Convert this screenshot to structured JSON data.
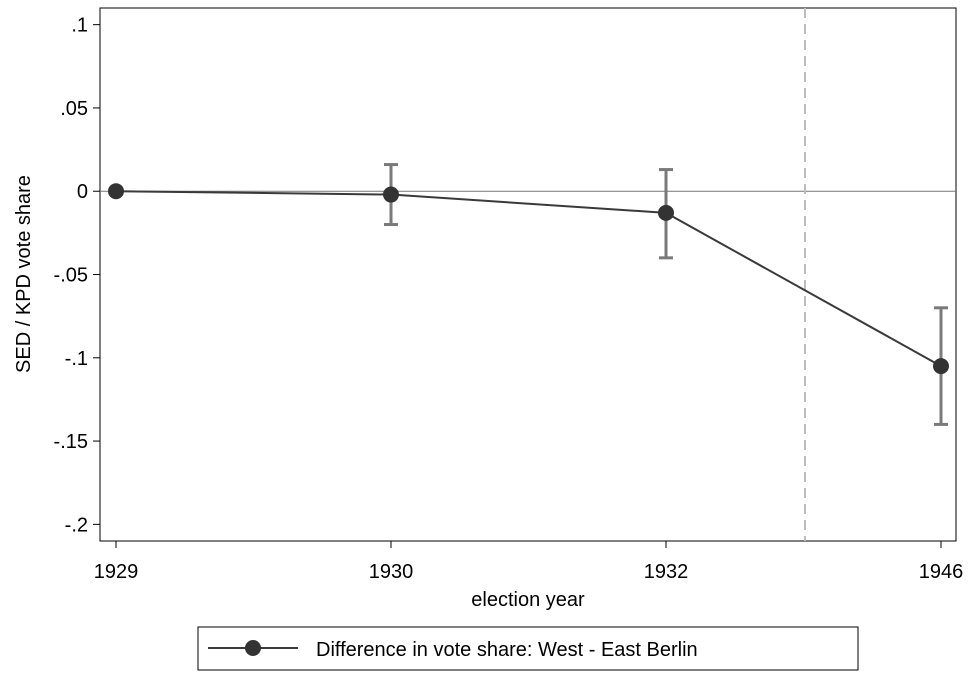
{
  "chart_data": {
    "type": "line",
    "xlabel": "election year",
    "ylabel": "SED / KPD vote share",
    "categories": [
      "1929",
      "1930",
      "1932",
      "1946"
    ],
    "ylim": [
      -0.21,
      0.11
    ],
    "yticks": [
      0.1,
      0.05,
      0,
      -0.05,
      -0.1,
      -0.15,
      -0.2
    ],
    "ytick_labels": [
      ".1",
      ".05",
      "0",
      "-.05",
      "-.1",
      "-.15",
      "-.2"
    ],
    "reference_hline": 0,
    "reference_vline_between": [
      "1932",
      "1946"
    ],
    "grid": false,
    "legend_position": "bottom",
    "series": [
      {
        "name": "Difference in vote share: West - East Berlin",
        "values": [
          0,
          -0.002,
          -0.013,
          -0.105
        ],
        "ci_low": [
          null,
          -0.02,
          -0.04,
          -0.14
        ],
        "ci_high": [
          null,
          0.016,
          0.013,
          -0.07
        ]
      }
    ],
    "colors": {
      "line": "#3a3a3a",
      "marker": "#333333",
      "error_bar": "#7a7a7a",
      "reference": "#bdbdbd"
    }
  }
}
